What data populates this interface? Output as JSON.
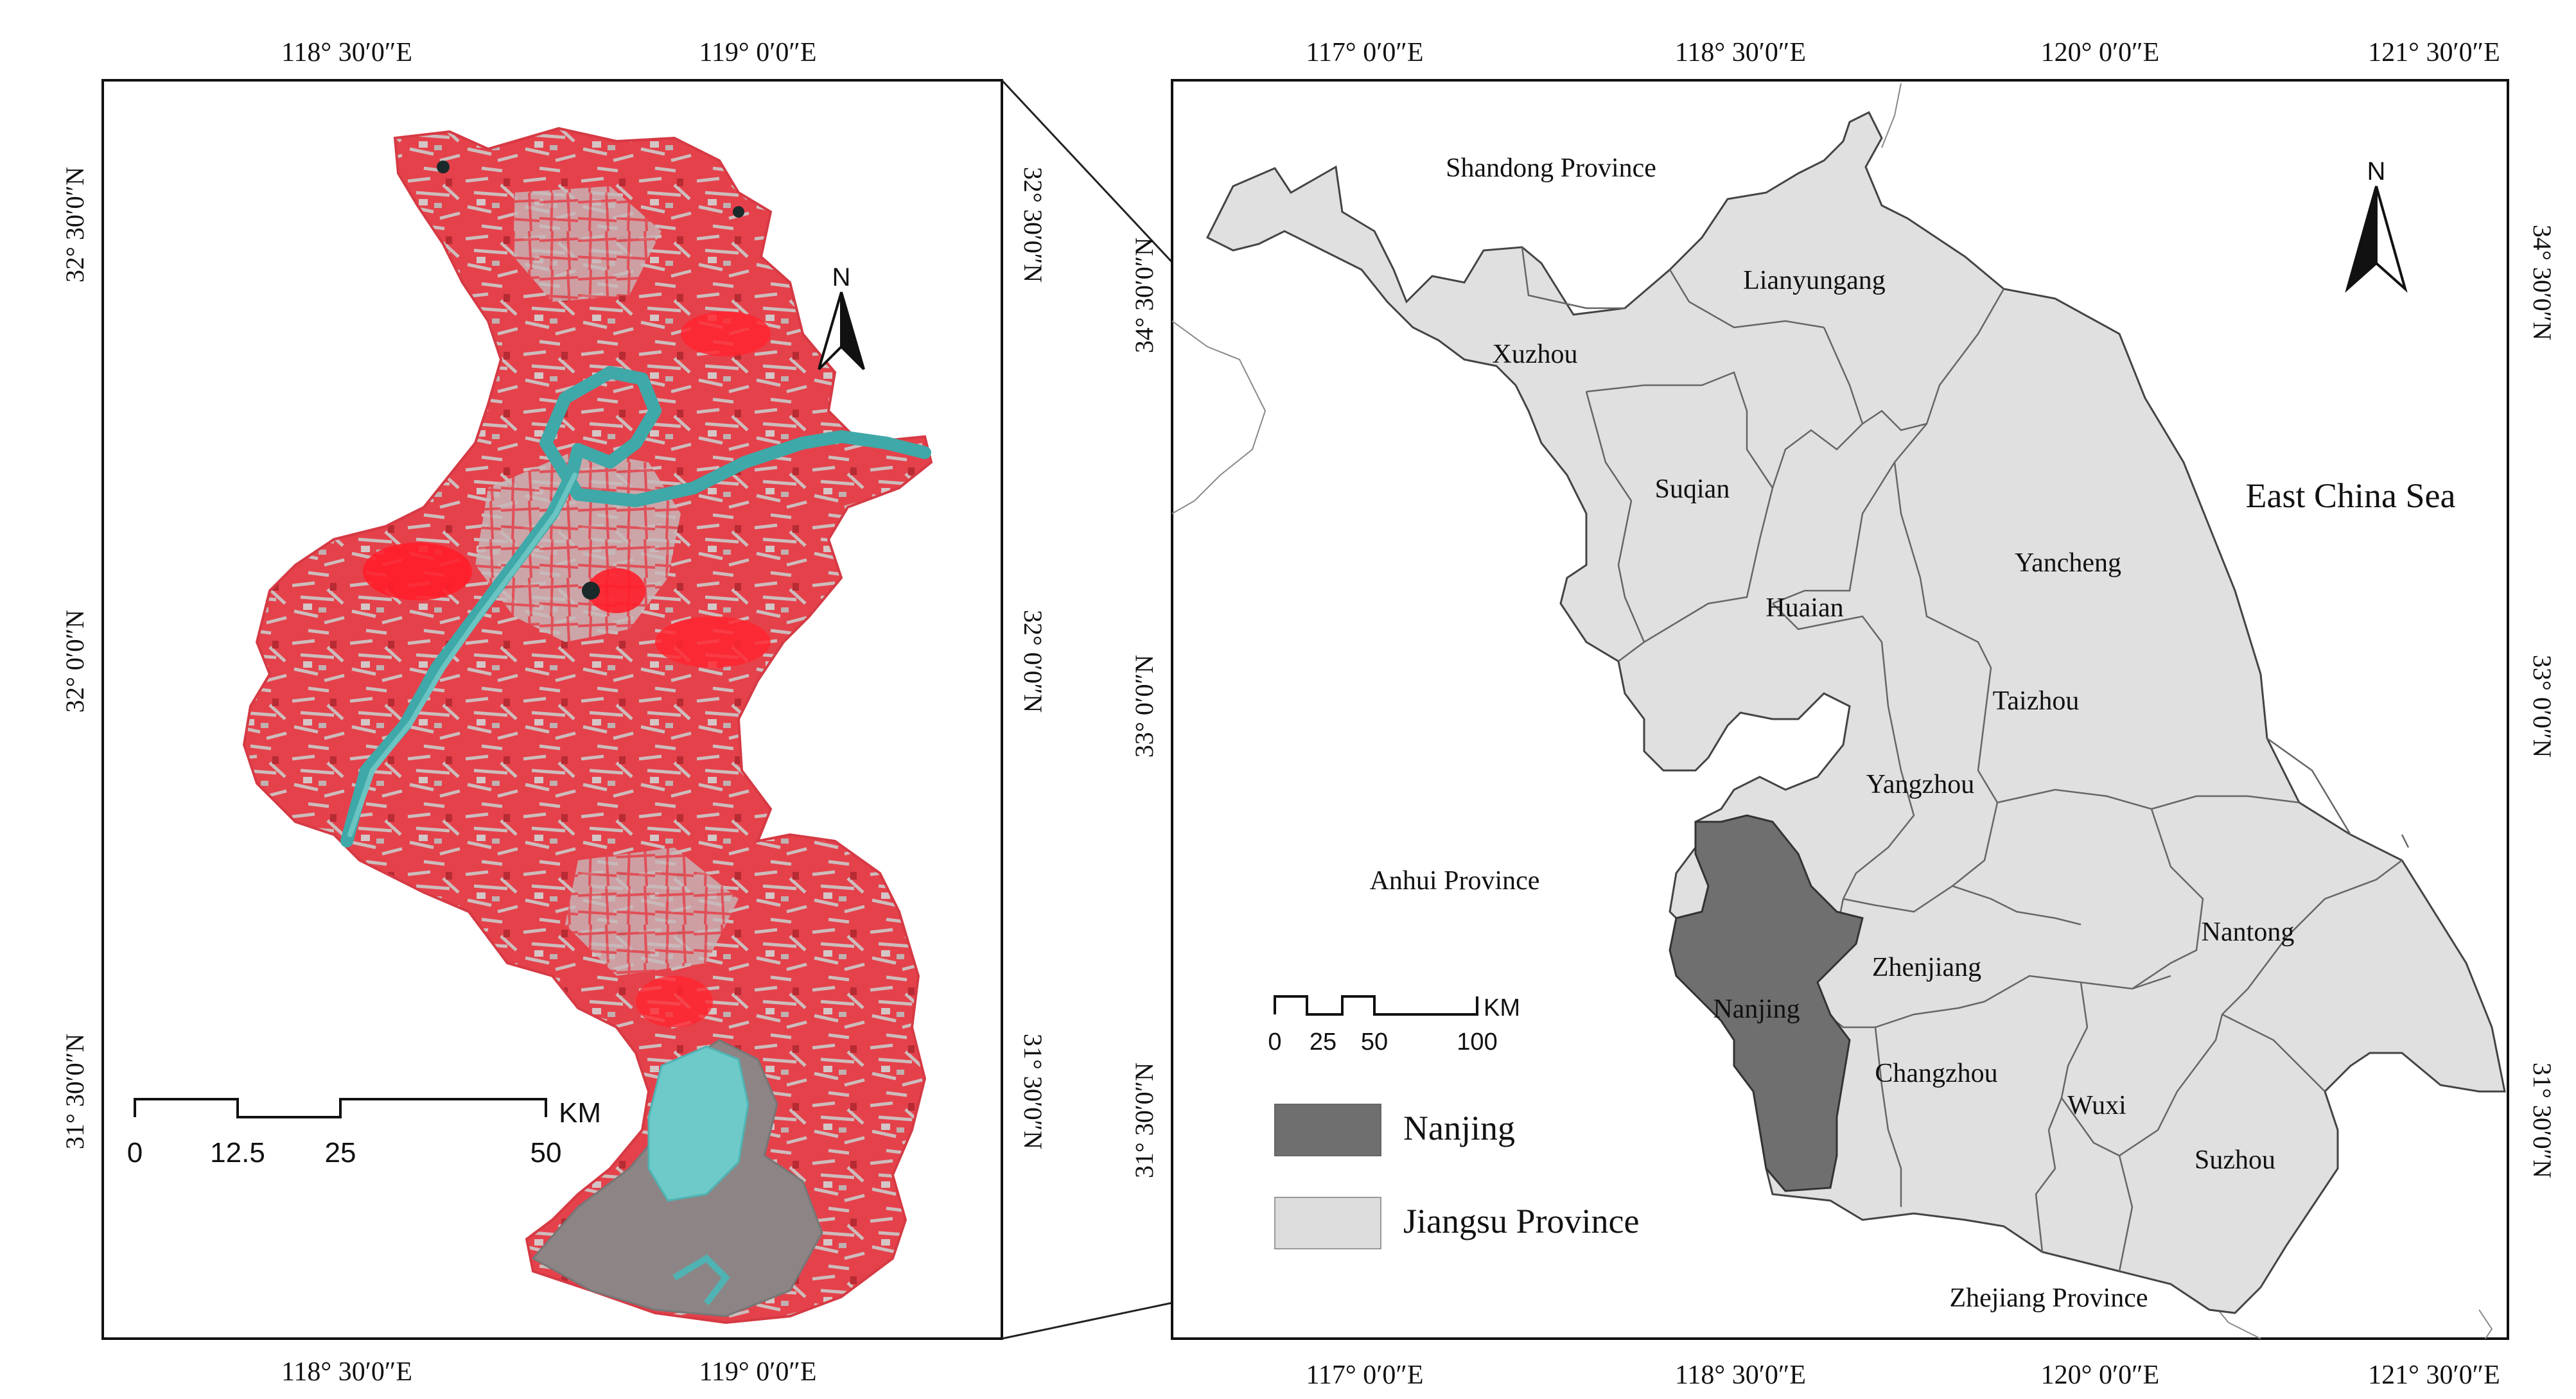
{
  "left_map": {
    "top_lon_labels": [
      "118° 30′0″E",
      "119° 0′0″E"
    ],
    "bottom_lon_labels": [
      "118° 30′0″E",
      "119° 0′0″E"
    ],
    "left_lat_labels": [
      "32° 30′0″N",
      "32° 0′0″N",
      "31° 30′0″N"
    ],
    "right_lat_labels": [
      "32° 30′0″N",
      "32° 0′0″N",
      "31° 30′0″N"
    ],
    "north_label": "N",
    "scale": {
      "unit": "KM",
      "ticks": [
        "0",
        "12.5",
        "25",
        "50"
      ]
    },
    "colors": {
      "vegetation": "#e8323c",
      "urban": "#c9b8b8",
      "water": "#4fb3b3",
      "dark_water": "#1a3d3d",
      "lake_basin": "#8a8a8a"
    }
  },
  "right_map": {
    "top_lon_labels": [
      "117° 0′0″E",
      "118° 30′0″E",
      "120° 0′0″E",
      "121° 30′0″E"
    ],
    "bottom_lon_labels": [
      "117° 0′0″E",
      "118° 30′0″E",
      "120° 0′0″E",
      "121° 30′0″E"
    ],
    "left_lat_labels": [
      "34° 30′0″N",
      "33° 0′0″N",
      "31° 30′0″N"
    ],
    "right_lat_labels": [
      "34° 30′0″N",
      "33° 0′0″N",
      "31° 30′0″N"
    ],
    "north_label": "N",
    "regions": {
      "shandong": "Shandong Province",
      "anhui": "Anhui Province",
      "zhejiang": "Zhejiang Province",
      "sea": "East China Sea"
    },
    "cities": {
      "lianyungang": "Lianyungang",
      "xuzhou": "Xuzhou",
      "suqian": "Suqian",
      "huaian": "Huaian",
      "yancheng": "Yancheng",
      "taizhou": "Taizhou",
      "yangzhou": "Yangzhou",
      "nantong": "Nantong",
      "zhenjiang": "Zhenjiang",
      "nanjing": "Nanjing",
      "changzhou": "Changzhou",
      "wuxi": "Wuxi",
      "suzhou": "Suzhou"
    },
    "scale": {
      "unit": "KM",
      "ticks": [
        "0",
        "25",
        "50",
        "100"
      ]
    },
    "legend": [
      {
        "label": "Nanjing",
        "color": "#6f6f6f"
      },
      {
        "label": "Jiangsu Province",
        "color": "#dcdcdc"
      }
    ]
  }
}
